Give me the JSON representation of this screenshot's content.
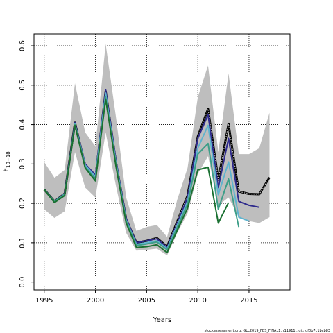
{
  "chart_data": {
    "type": "line",
    "xlabel": "Years",
    "ylabel_main": "F",
    "ylabel_sub": "10−18",
    "xlim": [
      1994,
      2019
    ],
    "ylim": [
      -0.02,
      0.63
    ],
    "xticks": [
      1995,
      2000,
      2005,
      2010,
      2015
    ],
    "yticks": [
      0.0,
      0.1,
      0.2,
      0.3,
      0.4,
      0.5,
      0.6
    ],
    "xtick_labels": [
      "1995",
      "2000",
      "2005",
      "2010",
      "2015"
    ],
    "ytick_labels": [
      "0.0",
      "0.1",
      "0.2",
      "0.3",
      "0.4",
      "0.5",
      "0.6"
    ],
    "grid": "dotted",
    "band": {
      "color": "#bebebe",
      "x": [
        1995,
        1996,
        1997,
        1998,
        1999,
        2000,
        2001,
        2002,
        2003,
        2004,
        2005,
        2006,
        2007,
        2008,
        2009,
        2010,
        2011,
        2012,
        2013,
        2014,
        2015,
        2016,
        2017
      ],
      "upper": [
        0.305,
        0.265,
        0.285,
        0.505,
        0.38,
        0.345,
        0.605,
        0.42,
        0.215,
        0.13,
        0.14,
        0.145,
        0.115,
        0.21,
        0.29,
        0.47,
        0.55,
        0.33,
        0.53,
        0.325,
        0.325,
        0.34,
        0.43
      ],
      "lower": [
        0.185,
        0.163,
        0.18,
        0.33,
        0.24,
        0.215,
        0.38,
        0.245,
        0.125,
        0.08,
        0.082,
        0.085,
        0.068,
        0.125,
        0.175,
        0.275,
        0.32,
        0.195,
        0.215,
        0.165,
        0.155,
        0.15,
        0.165
      ]
    },
    "series": [
      {
        "color": "#000000",
        "dotted": true,
        "x": [
          1995,
          1996,
          1997,
          1998,
          1999,
          2000,
          2001,
          2002,
          2003,
          2004,
          2005,
          2006,
          2007,
          2008,
          2009,
          2010,
          2011,
          2012,
          2013,
          2014,
          2015,
          2016,
          2017
        ],
        "values": [
          0.235,
          0.205,
          0.225,
          0.405,
          0.295,
          0.265,
          0.485,
          0.305,
          0.16,
          0.1,
          0.105,
          0.112,
          0.09,
          0.155,
          0.22,
          0.37,
          0.44,
          0.26,
          0.402,
          0.23,
          0.224,
          0.223,
          0.266
        ]
      },
      {
        "color": "#2e2a8c",
        "dotted": false,
        "x": [
          1995,
          1996,
          1997,
          1998,
          1999,
          2000,
          2001,
          2002,
          2003,
          2004,
          2005,
          2006,
          2007,
          2008,
          2009,
          2010,
          2011,
          2012,
          2013,
          2014,
          2015,
          2016
        ],
        "values": [
          0.235,
          0.205,
          0.225,
          0.405,
          0.3,
          0.272,
          0.488,
          0.31,
          0.162,
          0.1,
          0.105,
          0.11,
          0.088,
          0.15,
          0.215,
          0.365,
          0.425,
          0.24,
          0.365,
          0.205,
          0.195,
          0.19
        ]
      },
      {
        "color": "#5fb4cf",
        "dotted": false,
        "x": [
          1995,
          1996,
          1997,
          1998,
          1999,
          2000,
          2001,
          2002,
          2003,
          2004,
          2005,
          2006,
          2007,
          2008,
          2009,
          2010,
          2011,
          2012,
          2013,
          2014,
          2015
        ],
        "values": [
          0.235,
          0.205,
          0.224,
          0.402,
          0.297,
          0.268,
          0.48,
          0.305,
          0.158,
          0.096,
          0.1,
          0.105,
          0.085,
          0.145,
          0.205,
          0.34,
          0.398,
          0.222,
          0.305,
          0.165,
          0.155
        ]
      },
      {
        "color": "#3d9e88",
        "dotted": false,
        "x": [
          1995,
          1996,
          1997,
          1998,
          1999,
          2000,
          2001,
          2002,
          2003,
          2004,
          2005,
          2006,
          2007,
          2008,
          2009,
          2010,
          2011,
          2012,
          2013,
          2014
        ],
        "values": [
          0.235,
          0.205,
          0.223,
          0.4,
          0.293,
          0.262,
          0.47,
          0.3,
          0.155,
          0.093,
          0.097,
          0.102,
          0.082,
          0.14,
          0.198,
          0.325,
          0.352,
          0.185,
          0.262,
          0.14
        ]
      },
      {
        "color": "#1a7031",
        "dotted": false,
        "x": [
          1995,
          1996,
          1997,
          1998,
          1999,
          2000,
          2001,
          2002,
          2003,
          2004,
          2005,
          2006,
          2007,
          2008,
          2009,
          2010,
          2011,
          2012,
          2013
        ],
        "values": [
          0.235,
          0.202,
          0.22,
          0.398,
          0.29,
          0.257,
          0.465,
          0.295,
          0.15,
          0.088,
          0.09,
          0.095,
          0.075,
          0.132,
          0.188,
          0.285,
          0.292,
          0.15,
          0.202
        ]
      }
    ]
  },
  "footer": {
    "text": "stockassessment.org, GLL2019_FBS_FINAL1, r11911 , git: df0b7c1bcb83"
  }
}
